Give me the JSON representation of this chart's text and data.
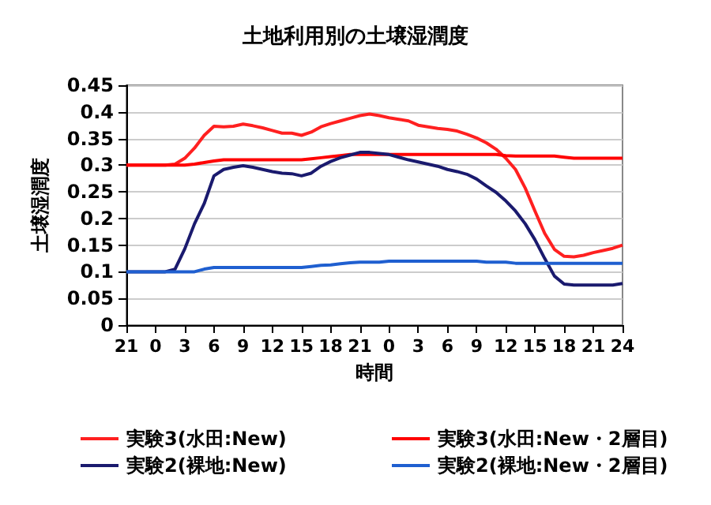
{
  "chart_data": {
    "type": "line",
    "title": "土地利用別の土壌湿潤度",
    "xlabel": "時間",
    "ylabel": "土壌湿潤度",
    "categories": [
      "21",
      null,
      null,
      "0",
      null,
      null,
      "3",
      null,
      null,
      "6",
      null,
      null,
      "9",
      null,
      null,
      "12",
      null,
      null,
      "15",
      null,
      null,
      "18",
      null,
      null,
      "21",
      null,
      null,
      "0",
      null,
      null,
      "3",
      null,
      null,
      "6",
      null,
      null,
      "9",
      null,
      null,
      "12",
      null,
      null,
      "15",
      null,
      null,
      "18",
      null,
      null,
      "21",
      null,
      null,
      "24"
    ],
    "series": [
      {
        "name": "実験3(水田:New)",
        "color": "#ff2020",
        "values": [
          0.3,
          0.3,
          0.3,
          0.3,
          0.3,
          0.302,
          0.313,
          0.332,
          0.356,
          0.373,
          0.372,
          0.373,
          0.377,
          0.374,
          0.37,
          0.365,
          0.36,
          0.36,
          0.356,
          0.362,
          0.372,
          0.378,
          0.383,
          0.388,
          0.393,
          0.396,
          0.393,
          0.389,
          0.386,
          0.383,
          0.375,
          0.372,
          0.369,
          0.367,
          0.364,
          0.358,
          0.351,
          0.342,
          0.33,
          0.313,
          0.292,
          0.257,
          0.214,
          0.172,
          0.142,
          0.129,
          0.128,
          0.131,
          0.136,
          0.14,
          0.144,
          0.15
        ]
      },
      {
        "name": "実験3(水田:New・2層目)",
        "color": "#ff0000",
        "values": [
          0.3,
          0.3,
          0.3,
          0.3,
          0.3,
          0.3,
          0.3,
          0.302,
          0.305,
          0.308,
          0.31,
          0.31,
          0.31,
          0.31,
          0.31,
          0.31,
          0.31,
          0.31,
          0.31,
          0.312,
          0.314,
          0.316,
          0.318,
          0.32,
          0.32,
          0.32,
          0.32,
          0.32,
          0.32,
          0.32,
          0.32,
          0.32,
          0.32,
          0.32,
          0.32,
          0.32,
          0.32,
          0.32,
          0.32,
          0.318,
          0.317,
          0.317,
          0.317,
          0.317,
          0.317,
          0.315,
          0.313,
          0.313,
          0.313,
          0.313,
          0.313,
          0.313
        ]
      },
      {
        "name": "実験2(裸地:New)",
        "color": "#1a1a6e",
        "values": [
          0.1,
          0.1,
          0.1,
          0.1,
          0.1,
          0.105,
          0.143,
          0.19,
          0.228,
          0.28,
          0.292,
          0.296,
          0.299,
          0.296,
          0.292,
          0.288,
          0.285,
          0.284,
          0.28,
          0.285,
          0.298,
          0.307,
          0.314,
          0.319,
          0.324,
          0.324,
          0.322,
          0.32,
          0.315,
          0.31,
          0.306,
          0.302,
          0.298,
          0.292,
          0.288,
          0.283,
          0.274,
          0.261,
          0.249,
          0.233,
          0.214,
          0.19,
          0.16,
          0.125,
          0.092,
          0.077,
          0.075,
          0.075,
          0.075,
          0.075,
          0.075,
          0.078
        ]
      },
      {
        "name": "実験2(裸地:New・2層目)",
        "color": "#1f5fd0",
        "values": [
          0.1,
          0.1,
          0.1,
          0.1,
          0.1,
          0.1,
          0.1,
          0.1,
          0.105,
          0.108,
          0.108,
          0.108,
          0.108,
          0.108,
          0.108,
          0.108,
          0.108,
          0.108,
          0.108,
          0.11,
          0.112,
          0.113,
          0.115,
          0.117,
          0.118,
          0.118,
          0.118,
          0.12,
          0.12,
          0.12,
          0.12,
          0.12,
          0.12,
          0.12,
          0.12,
          0.12,
          0.12,
          0.118,
          0.118,
          0.118,
          0.116,
          0.116,
          0.116,
          0.116,
          0.116,
          0.116,
          0.116,
          0.116,
          0.116,
          0.116,
          0.116,
          0.116
        ]
      }
    ],
    "ylim": [
      0,
      0.45
    ],
    "yticks": [
      0,
      0.05,
      0.1,
      0.15,
      0.2,
      0.25,
      0.3,
      0.35,
      0.4,
      0.45
    ],
    "grid": "y",
    "legend": "bottom"
  }
}
